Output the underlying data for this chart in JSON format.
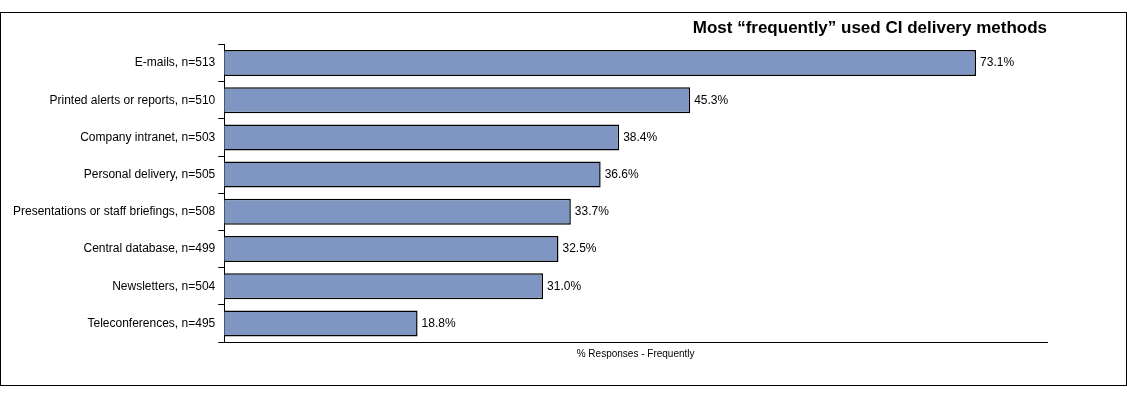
{
  "chart_data": {
    "type": "bar",
    "orientation": "horizontal",
    "title": "Most “frequently” used CI delivery methods",
    "xlabel": "% Responses - Frequently",
    "categories": [
      "E-mails, n=513",
      "Printed alerts or reports, n=510",
      "Company intranet, n=503",
      "Personal delivery, n=505",
      "Presentations or staff briefings, n=508",
      "Central database, n=499",
      "Newsletters, n=504",
      "Teleconferences, n=495"
    ],
    "values": [
      73.1,
      45.3,
      38.4,
      36.6,
      33.7,
      32.5,
      31.0,
      18.8
    ],
    "value_labels": [
      "73.1%",
      "45.3%",
      "38.4%",
      "36.6%",
      "33.7%",
      "32.5%",
      "31.0%",
      "18.8%"
    ],
    "color": "#7f96c2",
    "grid": false,
    "legend": false
  }
}
